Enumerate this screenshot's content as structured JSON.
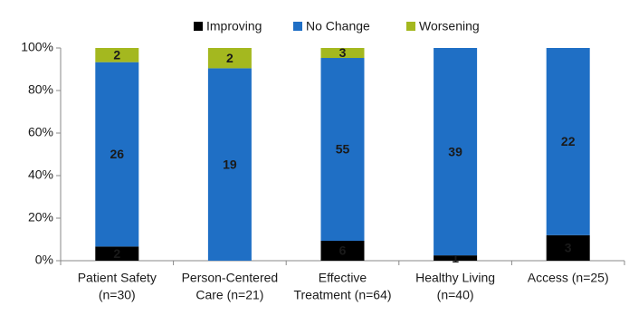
{
  "chart_data": {
    "type": "stacked_bar_percent",
    "categories": [
      [
        "Patient Safety",
        "(n=30)"
      ],
      [
        "Person-Centered",
        "Care (n=21)"
      ],
      [
        "Effective",
        "Treatment (n=64)"
      ],
      [
        "Healthy Living",
        "(n=40)"
      ],
      [
        "Access (n=25)"
      ]
    ],
    "series": [
      {
        "name": "Improving",
        "color": "#000000",
        "label_color": "#ffffff",
        "values": [
          2,
          0,
          6,
          1,
          3
        ]
      },
      {
        "name": "No Change",
        "color": "#1f6fc5",
        "label_color": "#ffffff",
        "values": [
          26,
          19,
          55,
          39,
          22
        ]
      },
      {
        "name": "Worsening",
        "color": "#a4b81f",
        "label_color": "#1a1a1a",
        "values": [
          2,
          2,
          3,
          0,
          0
        ]
      }
    ],
    "ylim": [
      0,
      100
    ],
    "yticks": [
      {
        "value": 0,
        "label": "0%"
      },
      {
        "value": 20,
        "label": "20%"
      },
      {
        "value": 40,
        "label": "40%"
      },
      {
        "value": 60,
        "label": "60%"
      },
      {
        "value": 80,
        "label": "80%"
      },
      {
        "value": 100,
        "label": "100%"
      }
    ],
    "grid": false,
    "legend": "top"
  }
}
